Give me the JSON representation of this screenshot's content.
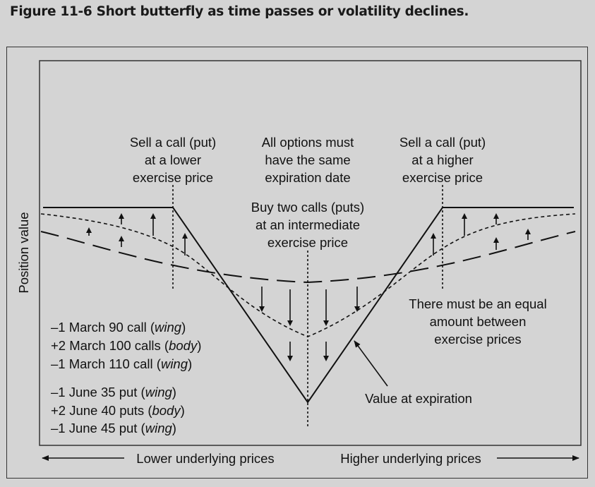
{
  "title": "Figure 11-6  Short butterfly as time passes or volatility declines.",
  "y_axis_label": "Position value",
  "annotations": {
    "left_strike": [
      "Sell a call (put)",
      "at a lower",
      "exercise price"
    ],
    "center_note": [
      "All options must",
      "have the same",
      "expiration date"
    ],
    "right_strike": [
      "Sell a call (put)",
      "at a higher",
      "exercise price"
    ],
    "middle_strike": [
      "Buy two calls (puts)",
      "at an intermediate",
      "exercise price"
    ],
    "equal_amount": [
      "There must be an equal",
      "amount between",
      "exercise prices"
    ],
    "expiration_label": "Value at expiration"
  },
  "legend_examples": [
    [
      {
        "prefix": "–1 March 90 call (",
        "role": "wing",
        "suffix": ")"
      },
      {
        "prefix": "+2 March 100 calls (",
        "role": "body",
        "suffix": ")"
      },
      {
        "prefix": "–1 March 110 call (",
        "role": "wing",
        "suffix": ")"
      }
    ],
    [
      {
        "prefix": "–1 June 35 put (",
        "role": "wing",
        "suffix": ")"
      },
      {
        "prefix": "+2 June 40 puts (",
        "role": "body",
        "suffix": ")"
      },
      {
        "prefix": "–1 June 45 put (",
        "role": "wing",
        "suffix": ")"
      }
    ]
  ],
  "x_axis": {
    "left_label": "Lower underlying prices",
    "right_label": "Higher underlying prices"
  },
  "colors": {
    "background": "#d4d4d4",
    "ink": "#111111"
  }
}
